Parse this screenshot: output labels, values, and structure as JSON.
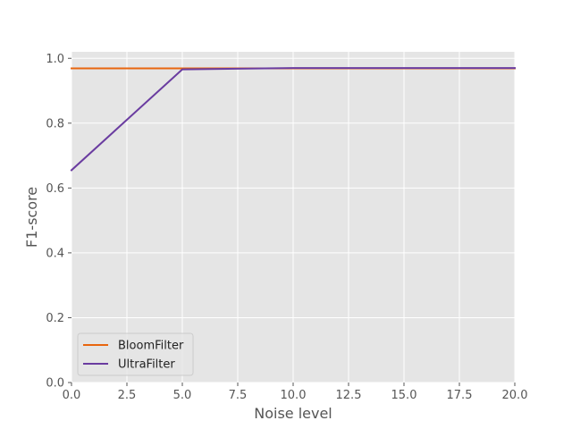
{
  "chart_data": {
    "type": "line",
    "title": "",
    "xlabel": "Noise level",
    "ylabel": "F1-score",
    "xlim": [
      0,
      20
    ],
    "ylim": [
      0,
      1.02
    ],
    "xticks": [
      0,
      2.5,
      5,
      7.5,
      10,
      12.5,
      15,
      17.5,
      20
    ],
    "xtick_labels": [
      "0.0",
      "2.5",
      "5.0",
      "7.5",
      "10.0",
      "12.5",
      "15.0",
      "17.5",
      "20.0"
    ],
    "yticks": [
      0,
      0.2,
      0.4,
      0.6,
      0.8,
      1.0
    ],
    "ytick_labels": [
      "0.0",
      "0.2",
      "0.4",
      "0.6",
      "0.8",
      "1.0"
    ],
    "grid": true,
    "legend_position": "bottom-left",
    "x": [
      0,
      5,
      10,
      15,
      20
    ],
    "series": [
      {
        "name": "BloomFilter",
        "color": "#e8650e",
        "values": [
          0.969,
          0.969,
          0.969,
          0.969,
          0.969
        ]
      },
      {
        "name": "UltraFilter",
        "color": "#6a3ca0",
        "values": [
          0.655,
          0.966,
          0.97,
          0.97,
          0.97
        ]
      }
    ],
    "style": {
      "background": "#e5e5e5",
      "grid_color": "#ffffff",
      "text_color": "#555555"
    }
  }
}
